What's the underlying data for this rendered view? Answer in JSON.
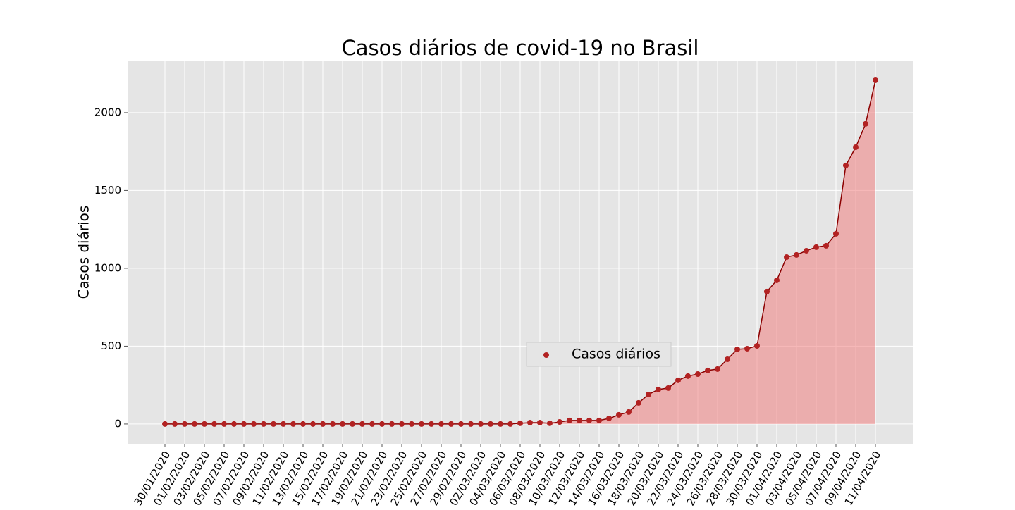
{
  "chart_data": {
    "type": "line",
    "title": "Casos diários de covid-19 no Brasil",
    "ylabel": "Casos diários",
    "categories": [
      "30/01/2020",
      null,
      "01/02/2020",
      null,
      "03/02/2020",
      null,
      "05/02/2020",
      null,
      "07/02/2020",
      null,
      "09/02/2020",
      null,
      "11/02/2020",
      null,
      "13/02/2020",
      null,
      "15/02/2020",
      null,
      "17/02/2020",
      null,
      "19/02/2020",
      null,
      "21/02/2020",
      null,
      "23/02/2020",
      null,
      "25/02/2020",
      null,
      "27/02/2020",
      null,
      "29/02/2020",
      null,
      "02/03/2020",
      null,
      "04/03/2020",
      null,
      "06/03/2020",
      null,
      "08/03/2020",
      null,
      "10/03/2020",
      null,
      "12/03/2020",
      null,
      "14/03/2020",
      null,
      "16/03/2020",
      null,
      "18/03/2020",
      null,
      "20/03/2020",
      null,
      "22/03/2020",
      null,
      "24/03/2020",
      null,
      "26/03/2020",
      null,
      "28/03/2020",
      null,
      "30/03/2020",
      null,
      "01/04/2020",
      null,
      "03/04/2020",
      null,
      "05/04/2020",
      null,
      "07/04/2020",
      null,
      "09/04/2020",
      null,
      "11/04/2020"
    ],
    "series": [
      {
        "name": "Casos diários",
        "color": "#b22222",
        "line_color": "#8b0000",
        "fill_color": "#f08080",
        "values": [
          0,
          0,
          0,
          0,
          0,
          0,
          0,
          0,
          0,
          0,
          0,
          0,
          0,
          0,
          0,
          0,
          0,
          0,
          0,
          0,
          0,
          0,
          0,
          0,
          0,
          0,
          0,
          0,
          0,
          0,
          0,
          0,
          0,
          0,
          0,
          0,
          5,
          9,
          9,
          5,
          13,
          23,
          23,
          23,
          23,
          36,
          59,
          77,
          136,
          190,
          222,
          231,
          281,
          308,
          321,
          344,
          353,
          416,
          480,
          484,
          502,
          851,
          923,
          1072,
          1086,
          1113,
          1136,
          1145,
          1222,
          1661,
          1778,
          1928,
          2208
        ]
      }
    ],
    "ylim": [
      -127,
      2330
    ],
    "yticks": [
      0,
      500,
      1000,
      1500,
      2000
    ],
    "grid": true
  }
}
